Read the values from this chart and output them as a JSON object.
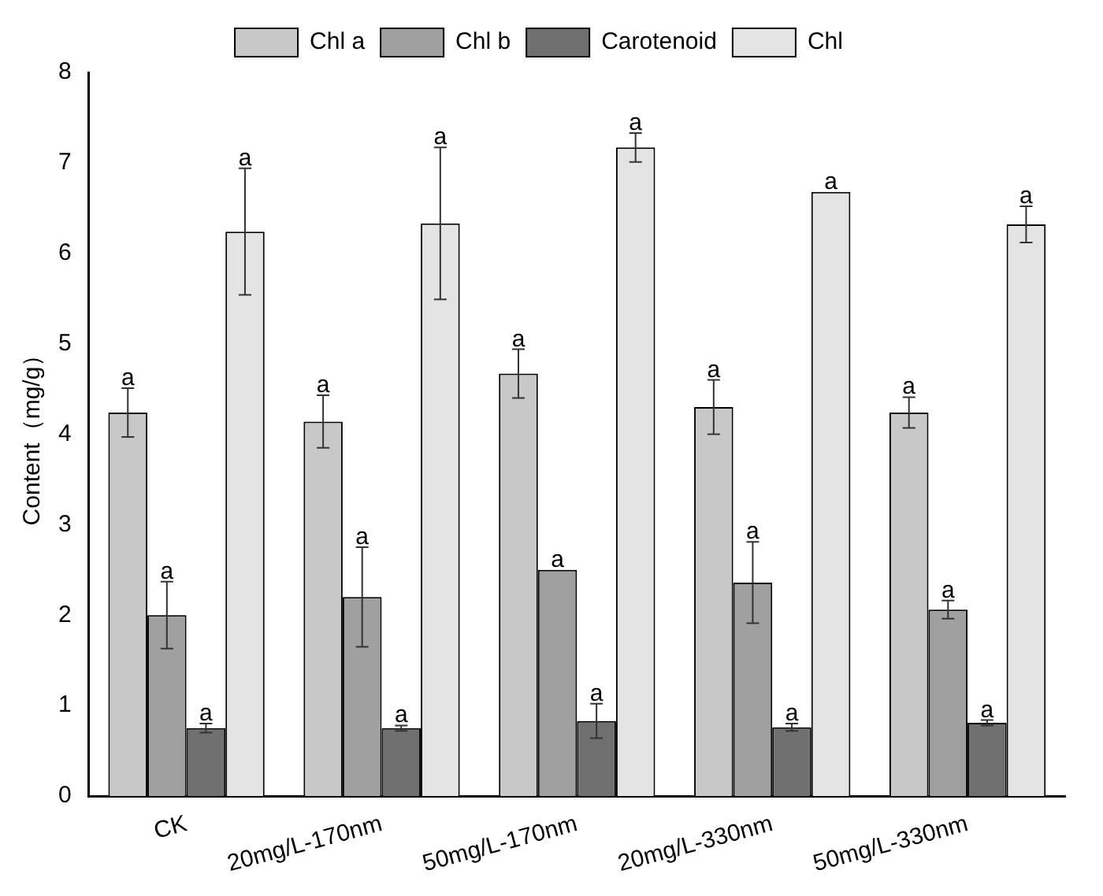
{
  "chart_data": {
    "type": "bar",
    "ylabel": "Content（mg/g）",
    "categories": [
      "CK",
      "20mg/L-170nm",
      "50mg/L-170nm",
      "20mg/L-330nm",
      "50mg/L-330nm"
    ],
    "series": [
      {
        "name": "Chl a",
        "color": "#c8c8c8",
        "values": [
          4.24,
          4.14,
          4.67,
          4.3,
          4.24
        ],
        "errors": [
          0.27,
          0.29,
          0.27,
          0.3,
          0.17
        ],
        "value_labels": [
          "a",
          "a",
          "a",
          "a",
          "a"
        ]
      },
      {
        "name": "Chl b",
        "color": "#a0a0a0",
        "values": [
          2.0,
          2.2,
          2.5,
          2.36,
          2.06
        ],
        "errors": [
          0.37,
          0.55,
          null,
          0.45,
          0.1
        ],
        "value_labels": [
          "a",
          "a",
          "a",
          "a",
          "a"
        ]
      },
      {
        "name": "Carotenoid",
        "color": "#707070",
        "values": [
          0.75,
          0.75,
          0.83,
          0.76,
          0.81
        ],
        "errors": [
          0.05,
          0.03,
          0.19,
          0.04,
          0.03
        ],
        "value_labels": [
          "a",
          "a",
          "a",
          "a",
          "a"
        ]
      },
      {
        "name": "Chl",
        "color": "#e4e4e4",
        "values": [
          6.24,
          6.33,
          7.17,
          6.68,
          6.32
        ],
        "errors": [
          0.7,
          0.84,
          0.16,
          null,
          0.2
        ],
        "value_labels": [
          "a",
          "a",
          "a",
          "a",
          "a"
        ]
      }
    ],
    "ylim": [
      0,
      8
    ],
    "yticks": [
      0,
      1,
      2,
      3,
      4,
      5,
      6,
      7,
      8
    ],
    "grid": false,
    "legend": "top"
  }
}
